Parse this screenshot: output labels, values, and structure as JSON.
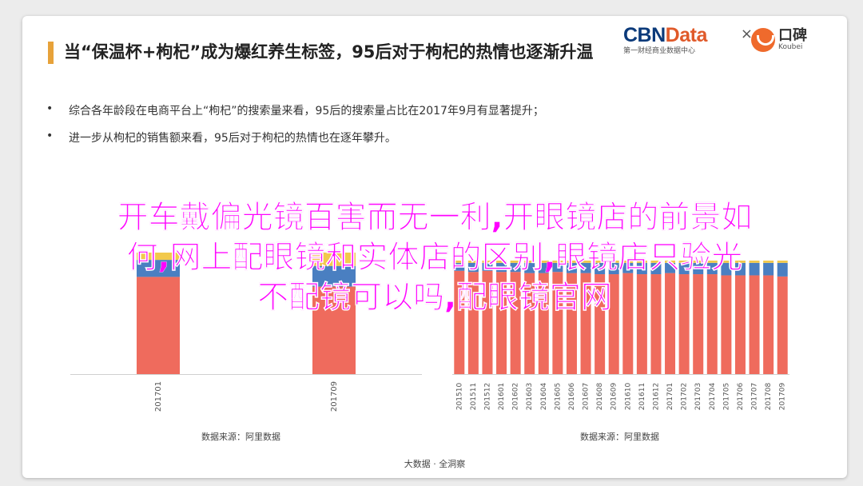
{
  "title": "当“保温杯+枸杞”成为爆红养生标签，95后对于枸杞的热情也逐渐升温",
  "logos": {
    "cbn_prefix": "CBN",
    "cbn_suffix": "Data",
    "cbn_sub": "第一财经商业数据中心",
    "times": "×",
    "koubei_name": "口碑",
    "koubei_sub": "Koubei"
  },
  "bullets": [
    "综合各年龄段在电商平台上“枸杞”的搜索量来看，95后的搜索量占比在2017年9月有显著提升；",
    "进一步从枸杞的销售额来看，95后对于枸杞的热情也在逐年攀升。"
  ],
  "bullet_marker": "•",
  "overlay_text": [
    "开车戴偏光镜百害而无一利,开眼镜店的前景如",
    "何,网上配眼镜和实体店的区别,眼镜店只验光",
    "不配镜可以吗,配眼镜官网"
  ],
  "colors": {
    "red": "#ef6b5d",
    "blue": "#4a7fc1",
    "yellow": "#f2c94c",
    "overlay": "#ff00ff"
  },
  "chart_data": [
    {
      "type": "bar",
      "stacked": true,
      "normalized": true,
      "categories": [
        "201701",
        "201709"
      ],
      "series": [
        {
          "values": [
            0.8,
            0.72
          ]
        },
        {
          "values": [
            0.14,
            0.17
          ]
        },
        {
          "values": [
            0.06,
            0.11
          ]
        }
      ],
      "ylim": [
        0,
        1
      ],
      "source": "数据来源：阿里数据"
    },
    {
      "type": "bar",
      "stacked": true,
      "normalized": true,
      "categories": [
        "201510",
        "201511",
        "201512",
        "201601",
        "201602",
        "201603",
        "201604",
        "201605",
        "201606",
        "201607",
        "201608",
        "201609",
        "201610",
        "201611",
        "201612",
        "201701",
        "201702",
        "201703",
        "201704",
        "201705",
        "201706",
        "201707",
        "201708",
        "201709"
      ],
      "series": [
        {
          "values": [
            0.91,
            0.9,
            0.91,
            0.9,
            0.9,
            0.89,
            0.89,
            0.9,
            0.89,
            0.89,
            0.88,
            0.88,
            0.89,
            0.88,
            0.88,
            0.89,
            0.88,
            0.88,
            0.88,
            0.87,
            0.87,
            0.87,
            0.87,
            0.86
          ]
        },
        {
          "values": [
            0.07,
            0.08,
            0.07,
            0.08,
            0.08,
            0.09,
            0.09,
            0.08,
            0.09,
            0.09,
            0.1,
            0.1,
            0.09,
            0.1,
            0.1,
            0.09,
            0.1,
            0.1,
            0.1,
            0.11,
            0.11,
            0.11,
            0.11,
            0.12
          ]
        },
        {
          "values": [
            0.02,
            0.02,
            0.02,
            0.02,
            0.02,
            0.02,
            0.02,
            0.02,
            0.02,
            0.02,
            0.02,
            0.02,
            0.02,
            0.02,
            0.02,
            0.02,
            0.02,
            0.02,
            0.02,
            0.02,
            0.02,
            0.02,
            0.02,
            0.02
          ]
        }
      ],
      "ylim": [
        0,
        1
      ],
      "source": "数据来源：阿里数据"
    }
  ],
  "footer": "大数据 · 全洞察"
}
